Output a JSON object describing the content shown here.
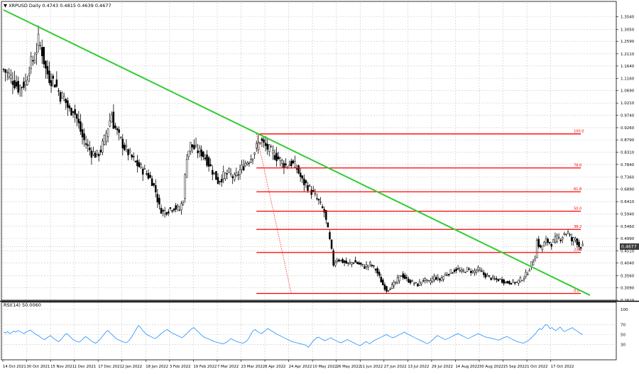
{
  "header": {
    "main_title": "▼ XRPUSD Daily  0.4743 0.4815 0.4639 0.4677",
    "rsi_title": "RSI(14) 50.0060"
  },
  "current_price_label": "0.4677",
  "colors": {
    "background": "#ffffff",
    "grid": "#c8c8c8",
    "candle": "#000000",
    "trendline": "#33cc33",
    "fib": "#ff0000",
    "rsi": "#1e90ff",
    "price_tag_bg": "#3c3c3c"
  },
  "chart_data": [
    {
      "type": "candlestick",
      "yscale": "linear",
      "ylim": [
        0.261,
        1.38
      ],
      "ytick_labels": [
        "1.3540",
        "1.3050",
        "1.2590",
        "1.2110",
        "1.1640",
        "1.1160",
        "1.0690",
        "1.0210",
        "0.9740",
        "0.9260",
        "0.8790",
        "0.8310",
        "0.7840",
        "0.7360",
        "0.6890",
        "0.6410",
        "0.5940",
        "0.5460",
        "0.4990",
        "0.4510",
        "0.4040",
        "0.3560",
        "0.3090",
        "0.2610"
      ],
      "xtick_labels": [
        "14 Oct 2021",
        "30 Oct 2021",
        "15 Nov 2021",
        "1 Dec 2021",
        "17 Dec 2021",
        "2 Jan 2022",
        "18 Jan 2022",
        "3 Feb 2022",
        "19 Feb 2022",
        "7 Mar 2022",
        "23 Mar 2022",
        "8 Apr 2022",
        "24 Apr 2022",
        "10 May 2022",
        "26 May 2022",
        "11 Jun 2022",
        "27 Jun 2022",
        "13 Jul 2022",
        "29 Jul 2022",
        "14 Aug 2022",
        "30 Aug 2022",
        "15 Sep 2022",
        "1 Oct 2022",
        "17 Oct 2022"
      ],
      "series": [
        {
          "values": [
            [
              0,
              1.15
            ],
            [
              4,
              1.12
            ],
            [
              8,
              1.08
            ],
            [
              12,
              1.1
            ],
            [
              14,
              1.16
            ],
            [
              17,
              1.2
            ],
            [
              19,
              1.26
            ],
            [
              21,
              1.22
            ],
            [
              23,
              1.15
            ],
            [
              25,
              1.12
            ],
            [
              28,
              1.1
            ],
            [
              31,
              1.05
            ],
            [
              33,
              1.04
            ],
            [
              36,
              0.99
            ],
            [
              38,
              1.0
            ],
            [
              40,
              0.96
            ],
            [
              43,
              0.89
            ],
            [
              46,
              0.85
            ],
            [
              48,
              0.83
            ],
            [
              51,
              0.82
            ],
            [
              53,
              0.84
            ],
            [
              55,
              0.88
            ],
            [
              57,
              0.93
            ],
            [
              59,
              0.98
            ],
            [
              60,
              0.94
            ],
            [
              63,
              0.89
            ],
            [
              66,
              0.85
            ],
            [
              69,
              0.82
            ],
            [
              72,
              0.79
            ],
            [
              75,
              0.77
            ],
            [
              78,
              0.75
            ],
            [
              81,
              0.72
            ],
            [
              83,
              0.68
            ],
            [
              85,
              0.62
            ],
            [
              87,
              0.6
            ],
            [
              90,
              0.61
            ],
            [
              93,
              0.62
            ],
            [
              96,
              0.61
            ],
            [
              98,
              0.65
            ],
            [
              100,
              0.82
            ],
            [
              102,
              0.86
            ],
            [
              105,
              0.84
            ],
            [
              108,
              0.83
            ],
            [
              111,
              0.8
            ],
            [
              114,
              0.76
            ],
            [
              117,
              0.72
            ],
            [
              120,
              0.74
            ],
            [
              123,
              0.75
            ],
            [
              126,
              0.73
            ],
            [
              129,
              0.76
            ],
            [
              132,
              0.79
            ],
            [
              135,
              0.81
            ],
            [
              138,
              0.85
            ],
            [
              140,
              0.88
            ],
            [
              142,
              0.86
            ],
            [
              145,
              0.84
            ],
            [
              148,
              0.82
            ],
            [
              151,
              0.8
            ],
            [
              154,
              0.78
            ],
            [
              157,
              0.79
            ],
            [
              160,
              0.77
            ],
            [
              163,
              0.72
            ],
            [
              166,
              0.7
            ],
            [
              169,
              0.67
            ],
            [
              172,
              0.64
            ],
            [
              175,
              0.6
            ],
            [
              177,
              0.53
            ],
            [
              179,
              0.45
            ],
            [
              180,
              0.4
            ],
            [
              182,
              0.42
            ],
            [
              185,
              0.41
            ],
            [
              188,
              0.4
            ],
            [
              191,
              0.41
            ],
            [
              194,
              0.4
            ],
            [
              197,
              0.39
            ],
            [
              200,
              0.4
            ],
            [
              203,
              0.38
            ],
            [
              205,
              0.35
            ],
            [
              207,
              0.32
            ],
            [
              209,
              0.3
            ],
            [
              211,
              0.31
            ],
            [
              214,
              0.33
            ],
            [
              217,
              0.36
            ],
            [
              220,
              0.34
            ],
            [
              223,
              0.33
            ],
            [
              226,
              0.32
            ],
            [
              229,
              0.34
            ],
            [
              232,
              0.33
            ],
            [
              235,
              0.35
            ],
            [
              238,
              0.34
            ],
            [
              241,
              0.36
            ],
            [
              244,
              0.37
            ],
            [
              247,
              0.38
            ],
            [
              250,
              0.37
            ],
            [
              253,
              0.38
            ],
            [
              256,
              0.37
            ],
            [
              259,
              0.38
            ],
            [
              262,
              0.36
            ],
            [
              265,
              0.35
            ],
            [
              268,
              0.34
            ],
            [
              271,
              0.34
            ],
            [
              274,
              0.33
            ],
            [
              277,
              0.33
            ],
            [
              280,
              0.33
            ],
            [
              282,
              0.34
            ],
            [
              284,
              0.35
            ],
            [
              286,
              0.37
            ],
            [
              288,
              0.4
            ],
            [
              290,
              0.43
            ],
            [
              291,
              0.49
            ],
            [
              293,
              0.46
            ],
            [
              296,
              0.49
            ],
            [
              299,
              0.48
            ],
            [
              302,
              0.5
            ],
            [
              304,
              0.5
            ],
            [
              306,
              0.52
            ],
            [
              308,
              0.52
            ],
            [
              310,
              0.49
            ],
            [
              312,
              0.5
            ],
            [
              314,
              0.47
            ],
            [
              316,
              0.4677
            ]
          ]
        }
      ],
      "trendline": {
        "from": [
          0,
          1.38
        ],
        "to": [
          320,
          0.28
        ]
      },
      "fib_levels": [
        {
          "label": "100.0",
          "price": 0.902
        },
        {
          "label": "78.6",
          "price": 0.771
        },
        {
          "label": "61.8",
          "price": 0.679
        },
        {
          "label": "50.0",
          "price": 0.604
        },
        {
          "label": "38.2",
          "price": 0.534
        },
        {
          "label": "23.6",
          "price": 0.445
        },
        {
          "label": "0.0",
          "price": 0.287
        }
      ],
      "fib_start_index": 138,
      "fib_end_index": 315,
      "fib_dotted": {
        "from": [
          138,
          0.902
        ],
        "to": [
          157,
          0.287
        ]
      }
    },
    {
      "type": "line",
      "name": "RSI(14)",
      "ylim": [
        0,
        100
      ],
      "ytick_labels": [
        "100",
        "70",
        "50",
        "30"
      ],
      "values": [
        55,
        53,
        56,
        52,
        54,
        57,
        55,
        58,
        56,
        54,
        52,
        55,
        57,
        59,
        56,
        53,
        50,
        48,
        45,
        42,
        40,
        43,
        46,
        48,
        44,
        41,
        38,
        36,
        40,
        45,
        50,
        52,
        48,
        44,
        40,
        38,
        36,
        35,
        38,
        42,
        46,
        44,
        40,
        37,
        35,
        33,
        36,
        40,
        45,
        50,
        55,
        58,
        54,
        50,
        46,
        42,
        40,
        38,
        36,
        35,
        34,
        37,
        42,
        48,
        55,
        62,
        68,
        64,
        58,
        54,
        50,
        48,
        46,
        44,
        42,
        45,
        48,
        52,
        55,
        58,
        60,
        57,
        54,
        52,
        50,
        48,
        46,
        44,
        46,
        50,
        54,
        58,
        62,
        64,
        60,
        56,
        52,
        48,
        45,
        43,
        42,
        40,
        38,
        36,
        35,
        34,
        33,
        32,
        33,
        35,
        38,
        42,
        40,
        38,
        36,
        35,
        34,
        33,
        35,
        38,
        44,
        52,
        58,
        60,
        56,
        54,
        52,
        55,
        58,
        62,
        60,
        57,
        55,
        52,
        50,
        48,
        46,
        44,
        42,
        40,
        38,
        36,
        35,
        34,
        33,
        32,
        31,
        30,
        28,
        25,
        30,
        36,
        40,
        44,
        45,
        42,
        40,
        38,
        40,
        42,
        44,
        41,
        39,
        37,
        35,
        34,
        36,
        38,
        40,
        38,
        36,
        34,
        32,
        30,
        28,
        30,
        33,
        36,
        34,
        32,
        35,
        38,
        40,
        42,
        44,
        46,
        48,
        50,
        48,
        46,
        44,
        45,
        47,
        49,
        51,
        53,
        55,
        52,
        50,
        48,
        46,
        44,
        42,
        40,
        38,
        36,
        34,
        32,
        34,
        37,
        41,
        45,
        48,
        46,
        44,
        42,
        40,
        42,
        44,
        46,
        48,
        50,
        52,
        50,
        48,
        46,
        44,
        42,
        44,
        46,
        48,
        50,
        52,
        50,
        48,
        46,
        45,
        44,
        43,
        42,
        41,
        40,
        39,
        41,
        43,
        45,
        46,
        44,
        42,
        40,
        38,
        36,
        35,
        34,
        33,
        35,
        37,
        40,
        44,
        48,
        52,
        58,
        62,
        60,
        66,
        70,
        68,
        62,
        64,
        60,
        58,
        62,
        65,
        60,
        56,
        58,
        60,
        62,
        64,
        60,
        58,
        55,
        52,
        50
      ]
    }
  ]
}
